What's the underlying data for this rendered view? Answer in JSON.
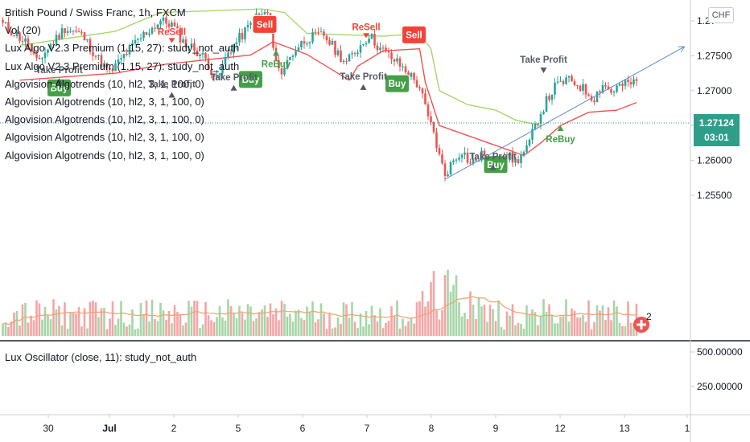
{
  "legend": {
    "symbol": "British Pound / Swiss Franc, 1h, FXCM",
    "lines": [
      "Vol (20)",
      "Lux Algo V2.3 Premium (1.15, 27): study_not_auth",
      "Lux Algo V2.3 Premium (1.15, 27): study_not_auth",
      "Algovision Algotrends (10, hl2, 3, 1, 100, 0)",
      "Algovision Algotrends (10, hl2, 3, 1, 100, 0)",
      "Algovision Algotrends (10, hl2, 3, 1, 100, 0)",
      "Algovision Algotrends (10, hl2, 3, 1, 100, 0)",
      "Algovision Algotrends (10, hl2, 3, 1, 100, 0)"
    ],
    "lower": "Lux Oscillator (close, 11): study_not_auth"
  },
  "currency_button": "CHF",
  "last_price": {
    "value": "1.27124",
    "countdown": "03:01"
  },
  "counter_badge": "2",
  "colors": {
    "up": "#26a69a",
    "down": "#ef5350",
    "support": "#ef5350",
    "resistance": "#a5d86a",
    "buy": "#43a047",
    "sell": "#f44336",
    "vol_up": "#a5d6a7",
    "vol_down": "#f4a5a5",
    "vol_ma": "#f5a06e",
    "trend": "#5b8bd0",
    "last": "#2e9e8a"
  },
  "chart_data": {
    "type": "candlestick",
    "title": "British Pound / Swiss Franc, 1h, FXCM",
    "price_axis": {
      "ticks": [
        "1.2?",
        "1.27500",
        "1.27000",
        "1.26500",
        "1.26000",
        "1.25500"
      ],
      "values": [
        1.28,
        1.275,
        1.27,
        1.265,
        1.26,
        1.255
      ],
      "ylim": [
        1.2533,
        1.2815
      ]
    },
    "oscillator_axis": {
      "ticks": [
        "500.00000",
        "250.00000"
      ],
      "values": [
        500,
        250
      ]
    },
    "x_ticks": [
      "30",
      "Jul",
      "2",
      "5",
      "6",
      "7",
      "8",
      "9",
      "12",
      "13",
      "1"
    ],
    "price_path": [
      [
        0,
        1.2795
      ],
      [
        8,
        1.277
      ],
      [
        12,
        1.274
      ],
      [
        16,
        1.276
      ],
      [
        22,
        1.279
      ],
      [
        28,
        1.278
      ],
      [
        34,
        1.2745
      ],
      [
        38,
        1.2725
      ],
      [
        44,
        1.2755
      ],
      [
        50,
        1.278
      ],
      [
        56,
        1.28
      ],
      [
        60,
        1.2795
      ],
      [
        64,
        1.277
      ],
      [
        68,
        1.276
      ],
      [
        72,
        1.2745
      ],
      [
        76,
        1.2715
      ],
      [
        78,
        1.2735
      ],
      [
        80,
        1.2755
      ],
      [
        84,
        1.2775
      ],
      [
        90,
        1.2805
      ],
      [
        94,
        1.2812
      ],
      [
        96,
        1.276
      ],
      [
        98,
        1.2725
      ],
      [
        100,
        1.2735
      ],
      [
        104,
        1.276
      ],
      [
        108,
        1.2775
      ],
      [
        114,
        1.278
      ],
      [
        118,
        1.2758
      ],
      [
        122,
        1.274
      ],
      [
        126,
        1.276
      ],
      [
        130,
        1.278
      ],
      [
        134,
        1.276
      ],
      [
        140,
        1.274
      ],
      [
        144,
        1.2725
      ],
      [
        148,
        1.2705
      ],
      [
        151,
        1.266
      ],
      [
        153,
        1.264
      ],
      [
        155,
        1.2605
      ],
      [
        157,
        1.258
      ],
      [
        160,
        1.26
      ],
      [
        163,
        1.2615
      ],
      [
        166,
        1.2595
      ],
      [
        170,
        1.2607
      ],
      [
        174,
        1.2592
      ],
      [
        178,
        1.261
      ],
      [
        182,
        1.2598
      ],
      [
        186,
        1.2615
      ],
      [
        190,
        1.266
      ],
      [
        193,
        1.2685
      ],
      [
        196,
        1.2705
      ],
      [
        200,
        1.2715
      ],
      [
        204,
        1.271
      ],
      [
        208,
        1.2695
      ],
      [
        210,
        1.269
      ],
      [
        213,
        1.271
      ],
      [
        216,
        1.2698
      ],
      [
        218,
        1.2705
      ],
      [
        222,
        1.271
      ],
      [
        225,
        1.2712
      ]
    ],
    "support_line": [
      [
        6,
        1.2715
      ],
      [
        40,
        1.2725
      ],
      [
        58,
        1.2738
      ],
      [
        88,
        1.2751
      ],
      [
        96,
        1.277
      ],
      [
        108,
        1.2752
      ],
      [
        123,
        1.2715
      ],
      [
        126,
        1.2735
      ],
      [
        135,
        1.2757
      ],
      [
        148,
        1.276
      ],
      [
        150,
        1.2712
      ],
      [
        155,
        1.265
      ],
      [
        185,
        1.2607
      ],
      [
        191,
        1.2625
      ],
      [
        198,
        1.265
      ],
      [
        208,
        1.2669
      ],
      [
        218,
        1.2672
      ],
      [
        225,
        1.2683
      ]
    ],
    "resistance_line": [
      [
        6,
        1.2765
      ],
      [
        40,
        1.2785
      ],
      [
        56,
        1.2812
      ],
      [
        92,
        1.2817
      ],
      [
        100,
        1.2812
      ],
      [
        108,
        1.2782
      ],
      [
        123,
        1.278
      ],
      [
        135,
        1.2778
      ],
      [
        148,
        1.2782
      ],
      [
        152,
        1.276
      ],
      [
        155,
        1.27
      ],
      [
        165,
        1.268
      ],
      [
        175,
        1.2672
      ],
      [
        182,
        1.2658
      ],
      [
        191,
        1.265
      ]
    ],
    "trendline": [
      [
        157,
        1.2573
      ],
      [
        242,
        1.2763
      ]
    ],
    "signals": [
      {
        "label": "Sell",
        "i": 93,
        "price": 1.2795,
        "kind": "sell-box"
      },
      {
        "label": "ReSell",
        "i": 60,
        "price": 1.278,
        "kind": "sell-text"
      },
      {
        "label": "ReSell",
        "i": 129,
        "price": 1.2787,
        "kind": "sell-text"
      },
      {
        "label": "Sell",
        "i": 146,
        "price": 1.278,
        "kind": "sell-box"
      },
      {
        "label": "Buy",
        "i": 20,
        "price": 1.2704,
        "kind": "buy-box"
      },
      {
        "label": "Buy",
        "i": 88,
        "price": 1.2716,
        "kind": "buy-box"
      },
      {
        "label": "Buy",
        "i": 140,
        "price": 1.271,
        "kind": "buy-box"
      },
      {
        "label": "Buy",
        "i": 175,
        "price": 1.2594,
        "kind": "buy-box"
      },
      {
        "label": "ReBuy",
        "i": 97,
        "price": 1.275,
        "kind": "buy-text"
      },
      {
        "label": "ReBuy",
        "i": 198,
        "price": 1.2642,
        "kind": "buy-text"
      },
      {
        "label": "Take Profit",
        "i": 20,
        "price": 1.2725,
        "kind": "tp-up"
      },
      {
        "label": "Take Profit",
        "i": 60,
        "price": 1.2705,
        "kind": "tp-up"
      },
      {
        "label": "Take Profit",
        "i": 82,
        "price": 1.2715,
        "kind": "tp-up"
      },
      {
        "label": "Take Profit",
        "i": 128,
        "price": 1.2716,
        "kind": "tp-up"
      },
      {
        "label": "Take Profit",
        "i": 174,
        "price": 1.2601,
        "kind": "tp-up"
      },
      {
        "label": "Take Profit",
        "i": 192,
        "price": 1.274,
        "kind": "tp-down"
      }
    ]
  }
}
